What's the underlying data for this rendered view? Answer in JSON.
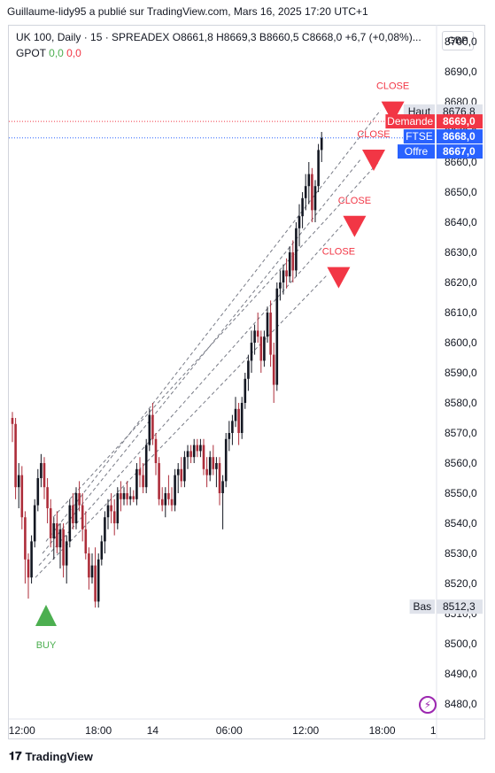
{
  "publish_line": "Guillaume-lidy95 a publié sur TradingView.com, Mars 16, 2025 17:20 UTC+1",
  "legend": {
    "symbol": "UK 100, Daily · 15 · SPREADEX",
    "open": "O8661,8",
    "high": "H8669,3",
    "low": "B8660,5",
    "close": "C8668,0",
    "change": "+6,7 (+0,08%)...",
    "indicator": "GPOT",
    "ind_v1": "0,0",
    "ind_v2": "0,0"
  },
  "currency": "GBP",
  "footer": {
    "brand": "TradingView"
  },
  "colors": {
    "up": "#131722",
    "down": "#ad2d3a",
    "buy": "#4caf50",
    "close": "#f23645",
    "blue": "#2962ff"
  },
  "chart_data": {
    "type": "candlestick",
    "ylim": [
      8475,
      8705
    ],
    "yticks": [
      "8480,0",
      "8490,0",
      "8500,0",
      "8510,0",
      "8520,0",
      "8530,0",
      "8540,0",
      "8550,0",
      "8560,0",
      "8570,0",
      "8580,0",
      "8590,0",
      "8600,0",
      "8610,0",
      "8620,0",
      "8630,0",
      "8640,0",
      "8650,0",
      "8660,0",
      "8670,0",
      "8680,0",
      "8690,0",
      "8700,0"
    ],
    "ytick_values": [
      8480,
      8490,
      8500,
      8510,
      8520,
      8530,
      8540,
      8550,
      8560,
      8570,
      8580,
      8590,
      8600,
      8610,
      8620,
      8630,
      8640,
      8650,
      8660,
      8670,
      8680,
      8690,
      8700
    ],
    "xticks": [
      {
        "label": "12:00",
        "idx": 3
      },
      {
        "label": "18:00",
        "idx": 27
      },
      {
        "label": "14",
        "idx": 44
      },
      {
        "label": "06:00",
        "idx": 68
      },
      {
        "label": "12:00",
        "idx": 92
      },
      {
        "label": "18:00",
        "idx": 116
      },
      {
        "label": "1",
        "idx": 132
      }
    ],
    "candles": [
      [
        8575,
        8577,
        8567,
        8573
      ],
      [
        8573,
        8575,
        8548,
        8552
      ],
      [
        8552,
        8560,
        8545,
        8556
      ],
      [
        8556,
        8559,
        8538,
        8542
      ],
      [
        8542,
        8544,
        8520,
        8528
      ],
      [
        8528,
        8530,
        8515,
        8522
      ],
      [
        8522,
        8536,
        8520,
        8534
      ],
      [
        8534,
        8548,
        8532,
        8546
      ],
      [
        8546,
        8558,
        8544,
        8555
      ],
      [
        8555,
        8563,
        8552,
        8560
      ],
      [
        8560,
        8562,
        8548,
        8552
      ],
      [
        8552,
        8555,
        8540,
        8545
      ],
      [
        8545,
        8548,
        8532,
        8535
      ],
      [
        8535,
        8542,
        8528,
        8540
      ],
      [
        8540,
        8544,
        8530,
        8532
      ],
      [
        8532,
        8540,
        8525,
        8538
      ],
      [
        8538,
        8540,
        8522,
        8526
      ],
      [
        8526,
        8536,
        8520,
        8534
      ],
      [
        8534,
        8548,
        8532,
        8546
      ],
      [
        8546,
        8550,
        8538,
        8540
      ],
      [
        8540,
        8552,
        8538,
        8550
      ],
      [
        8550,
        8554,
        8544,
        8546
      ],
      [
        8546,
        8550,
        8534,
        8538
      ],
      [
        8538,
        8544,
        8528,
        8530
      ],
      [
        8530,
        8532,
        8518,
        8522
      ],
      [
        8522,
        8530,
        8520,
        8526
      ],
      [
        8526,
        8532,
        8512,
        8514
      ],
      [
        8514,
        8530,
        8512,
        8528
      ],
      [
        8528,
        8536,
        8526,
        8534
      ],
      [
        8534,
        8544,
        8530,
        8542
      ],
      [
        8542,
        8548,
        8538,
        8546
      ],
      [
        8546,
        8550,
        8540,
        8544
      ],
      [
        8544,
        8548,
        8536,
        8540
      ],
      [
        8540,
        8552,
        8538,
        8550
      ],
      [
        8550,
        8554,
        8544,
        8548
      ],
      [
        8548,
        8552,
        8546,
        8550
      ],
      [
        8550,
        8554,
        8546,
        8548
      ],
      [
        8548,
        8552,
        8546,
        8549
      ],
      [
        8549,
        8551,
        8547,
        8548
      ],
      [
        8548,
        8560,
        8546,
        8558
      ],
      [
        8558,
        8562,
        8552,
        8556
      ],
      [
        8556,
        8560,
        8550,
        8552
      ],
      [
        8552,
        8568,
        8550,
        8566
      ],
      [
        8566,
        8578,
        8564,
        8576
      ],
      [
        8576,
        8580,
        8566,
        8568
      ],
      [
        8568,
        8570,
        8556,
        8560
      ],
      [
        8560,
        8562,
        8546,
        8548
      ],
      [
        8548,
        8552,
        8544,
        8546
      ],
      [
        8546,
        8552,
        8542,
        8550
      ],
      [
        8550,
        8556,
        8546,
        8548
      ],
      [
        8548,
        8552,
        8544,
        8546
      ],
      [
        8546,
        8558,
        8544,
        8556
      ],
      [
        8556,
        8560,
        8550,
        8558
      ],
      [
        8558,
        8562,
        8552,
        8554
      ],
      [
        8554,
        8564,
        8552,
        8562
      ],
      [
        8562,
        8566,
        8558,
        8564
      ],
      [
        8564,
        8566,
        8560,
        8562
      ],
      [
        8562,
        8568,
        8560,
        8566
      ],
      [
        8566,
        8568,
        8562,
        8564
      ],
      [
        8564,
        8568,
        8562,
        8566
      ],
      [
        8566,
        8568,
        8556,
        8558
      ],
      [
        8558,
        8562,
        8552,
        8556
      ],
      [
        8556,
        8564,
        8554,
        8562
      ],
      [
        8562,
        8566,
        8556,
        8558
      ],
      [
        8558,
        8562,
        8552,
        8560
      ],
      [
        8560,
        8562,
        8546,
        8550
      ],
      [
        8550,
        8556,
        8538,
        8554
      ],
      [
        8554,
        8570,
        8552,
        8568
      ],
      [
        8568,
        8574,
        8564,
        8570
      ],
      [
        8570,
        8576,
        8566,
        8574
      ],
      [
        8574,
        8582,
        8572,
        8578
      ],
      [
        8578,
        8580,
        8566,
        8570
      ],
      [
        8570,
        8582,
        8568,
        8580
      ],
      [
        8580,
        8590,
        8578,
        8588
      ],
      [
        8588,
        8596,
        8584,
        8594
      ],
      [
        8594,
        8604,
        8590,
        8600
      ],
      [
        8600,
        8606,
        8596,
        8604
      ],
      [
        8604,
        8610,
        8600,
        8602
      ],
      [
        8602,
        8604,
        8590,
        8594
      ],
      [
        8594,
        8604,
        8592,
        8602
      ],
      [
        8602,
        8612,
        8600,
        8610
      ],
      [
        8610,
        8614,
        8592,
        8596
      ],
      [
        8596,
        8600,
        8580,
        8586
      ],
      [
        8586,
        8620,
        8584,
        8618
      ],
      [
        8618,
        8624,
        8614,
        8620
      ],
      [
        8620,
        8626,
        8616,
        8624
      ],
      [
        8624,
        8628,
        8618,
        8622
      ],
      [
        8622,
        8632,
        8620,
        8630
      ],
      [
        8630,
        8634,
        8620,
        8624
      ],
      [
        8624,
        8640,
        8622,
        8638
      ],
      [
        8638,
        8646,
        8632,
        8642
      ],
      [
        8642,
        8650,
        8638,
        8648
      ],
      [
        8648,
        8656,
        8644,
        8652
      ],
      [
        8652,
        8660,
        8646,
        8656
      ],
      [
        8656,
        8658,
        8640,
        8644
      ],
      [
        8644,
        8654,
        8640,
        8652
      ],
      [
        8652,
        8666,
        8650,
        8664
      ],
      [
        8664,
        8670,
        8660,
        8668
      ]
    ],
    "buy_signal": {
      "label": "BUY",
      "idx": 5,
      "price": 8515
    },
    "close_signals": [
      {
        "label": "CLOSE",
        "idx": 99,
        "price": 8621
      },
      {
        "label": "CLOSE",
        "idx": 104,
        "price": 8638
      },
      {
        "label": "CLOSE",
        "idx": 110,
        "price": 8660
      },
      {
        "label": "CLOSE",
        "idx": 116,
        "price": 8676
      }
    ],
    "price_labels": [
      {
        "name": "Haut",
        "value": "8676,8",
        "price": 8676.8,
        "style": "light"
      },
      {
        "name": "Demande",
        "value": "8669,0",
        "price": 8673.5,
        "style": "red"
      },
      {
        "name": "FTSE",
        "value": "8668,0",
        "price": 8668.5,
        "style": "blue"
      },
      {
        "name": "Offre",
        "value": "8667,0",
        "price": 8663.5,
        "style": "blue"
      },
      {
        "name": "Bas",
        "value": "8512,3",
        "price": 8512.3,
        "style": "light"
      }
    ]
  }
}
